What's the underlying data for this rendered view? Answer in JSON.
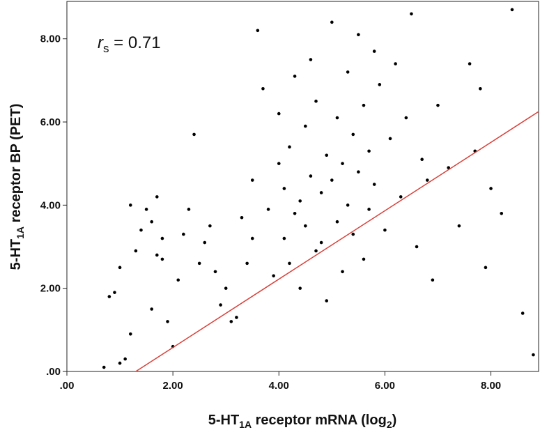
{
  "chart_data": {
    "type": "scatter",
    "xlabel": {
      "prefix": "5-HT",
      "sub": "1A",
      "suffix": " receptor mRNA (log",
      "sub2": "2",
      "end": ")"
    },
    "ylabel": {
      "prefix": "5-HT",
      "sub": "1A",
      "suffix": " receptor BP (PET)"
    },
    "annotation": {
      "symbol": "r",
      "sub": "s",
      "text": " = 0.71"
    },
    "xlim": [
      0,
      8.9
    ],
    "ylim": [
      0,
      8.9
    ],
    "x_ticks": [
      0,
      2,
      4,
      6,
      8
    ],
    "x_tick_labels": [
      ".00",
      "2.00",
      "4.00",
      "6.00",
      "8.00"
    ],
    "y_ticks": [
      0,
      2,
      4,
      6,
      8
    ],
    "y_tick_labels": [
      ".00",
      "2.00",
      "4.00",
      "6.00",
      "8.00"
    ],
    "trendline": {
      "x": [
        1.3,
        8.9
      ],
      "y": [
        0.0,
        6.25
      ],
      "color": "#d9413a"
    },
    "point_color": "#000000",
    "points": [
      [
        0.7,
        0.1
      ],
      [
        0.8,
        1.8
      ],
      [
        0.9,
        1.9
      ],
      [
        1.0,
        2.5
      ],
      [
        1.0,
        0.2
      ],
      [
        1.1,
        0.3
      ],
      [
        1.2,
        4.0
      ],
      [
        1.2,
        0.9
      ],
      [
        1.3,
        2.9
      ],
      [
        1.4,
        3.4
      ],
      [
        1.5,
        3.9
      ],
      [
        1.6,
        1.5
      ],
      [
        1.6,
        3.6
      ],
      [
        1.7,
        4.2
      ],
      [
        1.7,
        2.8
      ],
      [
        1.8,
        2.7
      ],
      [
        1.8,
        3.2
      ],
      [
        1.9,
        1.2
      ],
      [
        2.0,
        0.6
      ],
      [
        2.1,
        2.2
      ],
      [
        2.2,
        3.3
      ],
      [
        2.3,
        3.9
      ],
      [
        2.4,
        5.7
      ],
      [
        2.5,
        2.6
      ],
      [
        2.6,
        3.1
      ],
      [
        2.7,
        3.5
      ],
      [
        2.8,
        2.4
      ],
      [
        2.9,
        1.6
      ],
      [
        3.0,
        2.0
      ],
      [
        3.1,
        1.2
      ],
      [
        3.2,
        1.3
      ],
      [
        3.3,
        3.7
      ],
      [
        3.4,
        2.6
      ],
      [
        3.5,
        3.2
      ],
      [
        3.5,
        4.6
      ],
      [
        3.6,
        8.2
      ],
      [
        3.7,
        6.8
      ],
      [
        3.8,
        3.9
      ],
      [
        3.9,
        2.3
      ],
      [
        4.0,
        6.2
      ],
      [
        4.0,
        5.0
      ],
      [
        4.1,
        3.2
      ],
      [
        4.1,
        4.4
      ],
      [
        4.2,
        5.4
      ],
      [
        4.2,
        2.6
      ],
      [
        4.3,
        7.1
      ],
      [
        4.3,
        3.8
      ],
      [
        4.4,
        4.1
      ],
      [
        4.4,
        2.0
      ],
      [
        4.5,
        5.9
      ],
      [
        4.5,
        3.5
      ],
      [
        4.6,
        7.5
      ],
      [
        4.6,
        4.7
      ],
      [
        4.7,
        2.9
      ],
      [
        4.7,
        6.5
      ],
      [
        4.8,
        4.3
      ],
      [
        4.8,
        3.1
      ],
      [
        4.9,
        5.2
      ],
      [
        4.9,
        1.7
      ],
      [
        5.0,
        8.4
      ],
      [
        5.0,
        4.6
      ],
      [
        5.1,
        3.6
      ],
      [
        5.1,
        6.1
      ],
      [
        5.2,
        2.4
      ],
      [
        5.2,
        5.0
      ],
      [
        5.3,
        7.2
      ],
      [
        5.3,
        4.0
      ],
      [
        5.4,
        3.3
      ],
      [
        5.4,
        5.7
      ],
      [
        5.5,
        8.1
      ],
      [
        5.5,
        4.8
      ],
      [
        5.6,
        2.7
      ],
      [
        5.6,
        6.4
      ],
      [
        5.7,
        3.9
      ],
      [
        5.7,
        5.3
      ],
      [
        5.8,
        7.7
      ],
      [
        5.8,
        4.5
      ],
      [
        5.9,
        6.9
      ],
      [
        6.0,
        3.4
      ],
      [
        6.1,
        5.6
      ],
      [
        6.2,
        7.4
      ],
      [
        6.3,
        4.2
      ],
      [
        6.4,
        6.1
      ],
      [
        6.5,
        8.6
      ],
      [
        6.6,
        3.0
      ],
      [
        6.7,
        5.1
      ],
      [
        6.8,
        4.6
      ],
      [
        6.9,
        2.2
      ],
      [
        7.0,
        6.4
      ],
      [
        7.2,
        4.9
      ],
      [
        7.4,
        3.5
      ],
      [
        7.6,
        7.4
      ],
      [
        7.7,
        5.3
      ],
      [
        7.8,
        6.8
      ],
      [
        7.9,
        2.5
      ],
      [
        8.0,
        4.4
      ],
      [
        8.2,
        3.8
      ],
      [
        8.4,
        8.7
      ],
      [
        8.6,
        1.4
      ],
      [
        8.8,
        0.4
      ]
    ]
  }
}
